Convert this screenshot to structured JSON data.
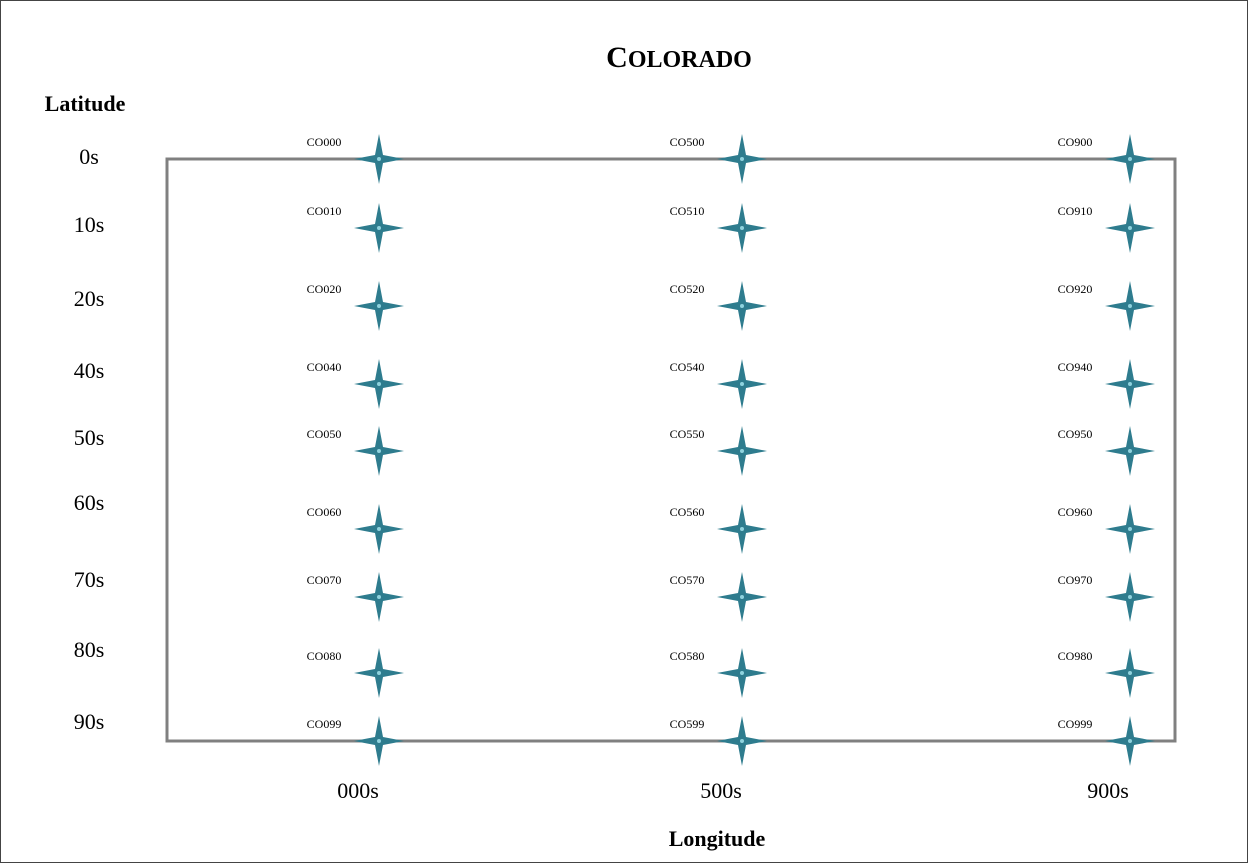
{
  "chart_data": {
    "type": "scatter",
    "title_first": "C",
    "title_rest": "OLORADO",
    "xlabel": "Longitude",
    "ylabel": "Latitude",
    "x_ticks": [
      "000s",
      "500s",
      "900s"
    ],
    "y_ticks": [
      "0s",
      "10s",
      "20s",
      "40s",
      "50s",
      "60s",
      "70s",
      "80s",
      "90s"
    ],
    "marker": "four-point-star",
    "marker_color": "#2E7C8E",
    "frame_color": "#808080",
    "points": [
      {
        "x": 0,
        "y": 0,
        "label": "CO000"
      },
      {
        "x": 0,
        "y": 10,
        "label": "CO010"
      },
      {
        "x": 0,
        "y": 20,
        "label": "CO020"
      },
      {
        "x": 0,
        "y": 40,
        "label": "CO040"
      },
      {
        "x": 0,
        "y": 50,
        "label": "CO050"
      },
      {
        "x": 0,
        "y": 60,
        "label": "CO060"
      },
      {
        "x": 0,
        "y": 70,
        "label": "CO070"
      },
      {
        "x": 0,
        "y": 80,
        "label": "CO080"
      },
      {
        "x": 0,
        "y": 99,
        "label": "CO099"
      },
      {
        "x": 500,
        "y": 0,
        "label": "CO500"
      },
      {
        "x": 500,
        "y": 10,
        "label": "CO510"
      },
      {
        "x": 500,
        "y": 20,
        "label": "CO520"
      },
      {
        "x": 500,
        "y": 40,
        "label": "CO540"
      },
      {
        "x": 500,
        "y": 50,
        "label": "CO550"
      },
      {
        "x": 500,
        "y": 60,
        "label": "CO560"
      },
      {
        "x": 500,
        "y": 70,
        "label": "CO570"
      },
      {
        "x": 500,
        "y": 80,
        "label": "CO580"
      },
      {
        "x": 500,
        "y": 99,
        "label": "CO599"
      },
      {
        "x": 900,
        "y": 0,
        "label": "CO900"
      },
      {
        "x": 900,
        "y": 10,
        "label": "CO910"
      },
      {
        "x": 900,
        "y": 20,
        "label": "CO920"
      },
      {
        "x": 900,
        "y": 40,
        "label": "CO940"
      },
      {
        "x": 900,
        "y": 50,
        "label": "CO950"
      },
      {
        "x": 900,
        "y": 60,
        "label": "CO960"
      },
      {
        "x": 900,
        "y": 70,
        "label": "CO970"
      },
      {
        "x": 900,
        "y": 80,
        "label": "CO980"
      },
      {
        "x": 900,
        "y": 99,
        "label": "CO999"
      }
    ]
  }
}
